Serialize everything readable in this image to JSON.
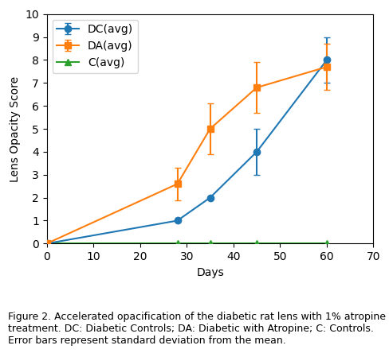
{
  "chart_data": {
    "type": "line",
    "x": [
      0,
      28,
      35,
      45,
      60
    ],
    "series": [
      {
        "name": "DC(avg)",
        "values": [
          0,
          1,
          2,
          4,
          8
        ],
        "errors": [
          0,
          0,
          0,
          1,
          1
        ],
        "marker": "o"
      },
      {
        "name": "DA(avg)",
        "values": [
          0,
          2.6,
          5,
          6.8,
          7.7
        ],
        "errors": [
          0,
          0.7,
          1.1,
          1.1,
          1.0
        ],
        "marker": "s"
      },
      {
        "name": "C(avg)",
        "values": [
          0,
          0,
          0,
          0,
          0
        ],
        "marker": "^"
      }
    ],
    "xlabel": "Days",
    "ylabel": "Lens Opacity Score",
    "xlim": [
      0,
      70
    ],
    "ylim": [
      0,
      10
    ],
    "xticks": [
      0,
      10,
      20,
      30,
      40,
      50,
      60,
      70
    ],
    "yticks": [
      0,
      1,
      2,
      3,
      4,
      5,
      6,
      7,
      8,
      9,
      10
    ],
    "legend": "upper left",
    "caption": "Figure 2. Accelerated opacification of the diabetic rat lens with 1% atropine treatment. DC: Diabetic Controls; DA: Diabetic with Atropine; C: Controls. Error bars represent standard deviation from the mean."
  }
}
